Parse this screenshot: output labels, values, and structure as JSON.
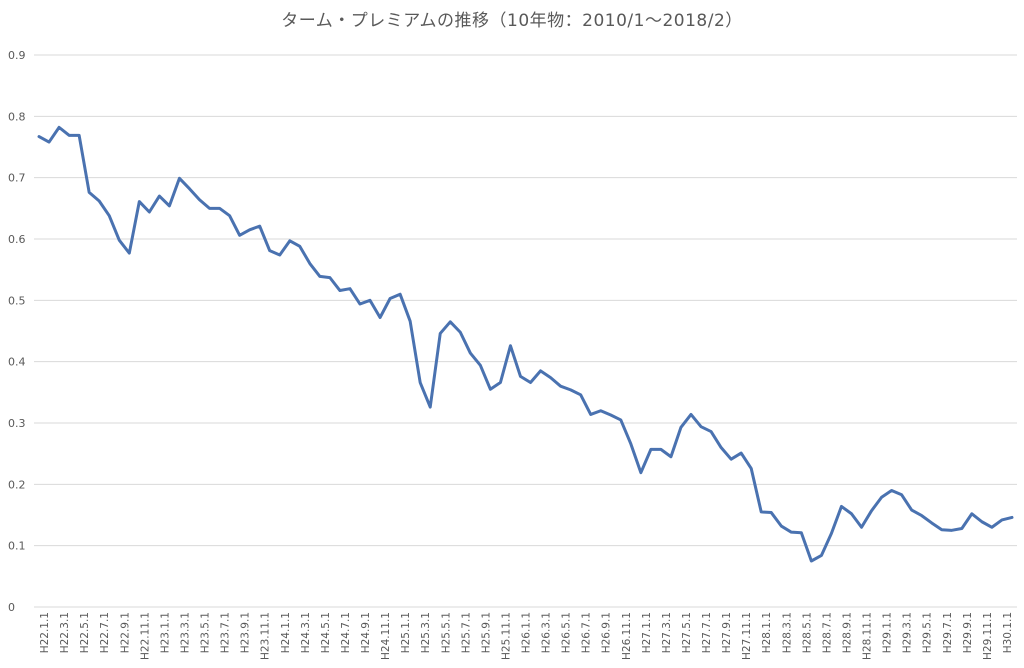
{
  "chart_data": {
    "type": "line",
    "title": "ターム・プレミアムの推移（10年物：2010/1～2018/2）",
    "xlabel": "",
    "ylabel": "",
    "ylim": [
      0,
      0.9
    ],
    "yticks": [
      "0",
      "0.1",
      "0.2",
      "0.3",
      "0.4",
      "0.5",
      "0.6",
      "0.7",
      "0.8",
      "0.9"
    ],
    "grid": true,
    "legend": "none",
    "line_color": "#4a72b0",
    "grid_color": "#d9d9d9",
    "x_tick_labels": [
      "H22.1.1",
      "H22.3.1",
      "H22.5.1",
      "H22.7.1",
      "H22.9.1",
      "H22.11.1",
      "H23.1.1",
      "H23.3.1",
      "H23.5.1",
      "H23.7.1",
      "H23.9.1",
      "H23.11.1",
      "H24.1.1",
      "H24.3.1",
      "H24.5.1",
      "H24.7.1",
      "H24.9.1",
      "H24.11.1",
      "H25.1.1",
      "H25.3.1",
      "H25.5.1",
      "H25.7.1",
      "H25.9.1",
      "H25.11.1",
      "H26.1.1",
      "H26.3.1",
      "H26.5.1",
      "H26.7.1",
      "H26.9.1",
      "H26.11.1",
      "H27.1.1",
      "H27.3.1",
      "H27.5.1",
      "H27.7.1",
      "H27.9.1",
      "H27.11.1",
      "H28.1.1",
      "H28.3.1",
      "H28.5.1",
      "H28.7.1",
      "H28.9.1",
      "H28.11.1",
      "H29.1.1",
      "H29.3.1",
      "H29.5.1",
      "H29.7.1",
      "H29.9.1",
      "H29.11.1",
      "H30.1.1"
    ],
    "series": [
      {
        "values": [
          0.767,
          0.758,
          0.782,
          0.769,
          0.769,
          0.676,
          0.662,
          0.638,
          0.598,
          0.577,
          0.661,
          0.644,
          0.67,
          0.654,
          0.699,
          0.682,
          0.664,
          0.65,
          0.65,
          0.638,
          0.606,
          0.615,
          0.621,
          0.581,
          0.574,
          0.597,
          0.588,
          0.56,
          0.539,
          0.537,
          0.516,
          0.519,
          0.494,
          0.5,
          0.472,
          0.503,
          0.51,
          0.466,
          0.366,
          0.326,
          0.446,
          0.465,
          0.448,
          0.414,
          0.394,
          0.355,
          0.366,
          0.426,
          0.376,
          0.366,
          0.385,
          0.374,
          0.36,
          0.354,
          0.346,
          0.314,
          0.32,
          0.313,
          0.305,
          0.266,
          0.219,
          0.257,
          0.257,
          0.245,
          0.293,
          0.314,
          0.294,
          0.286,
          0.26,
          0.241,
          0.251,
          0.226,
          0.155,
          0.154,
          0.132,
          0.122,
          0.121,
          0.075,
          0.084,
          0.12,
          0.164,
          0.152,
          0.13,
          0.157,
          0.179,
          0.19,
          0.183,
          0.158,
          0.149,
          0.137,
          0.126,
          0.125,
          0.128,
          0.152,
          0.139,
          0.13,
          0.142,
          0.146
        ]
      }
    ]
  }
}
